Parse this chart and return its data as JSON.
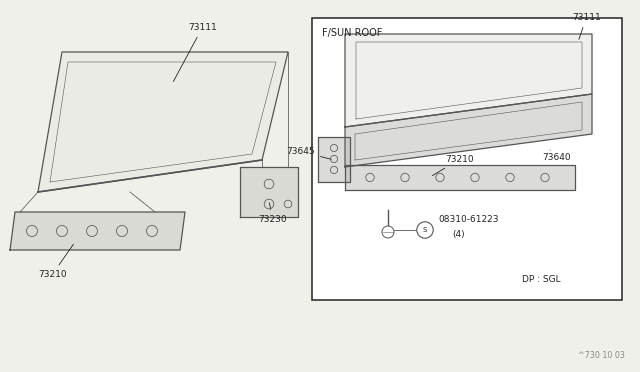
{
  "bg_color": "#f0f0eb",
  "diagram_title": "F/SUN ROOF",
  "footer_text": "^730 10 03",
  "line_color": "#555555",
  "dark_color": "#222222"
}
